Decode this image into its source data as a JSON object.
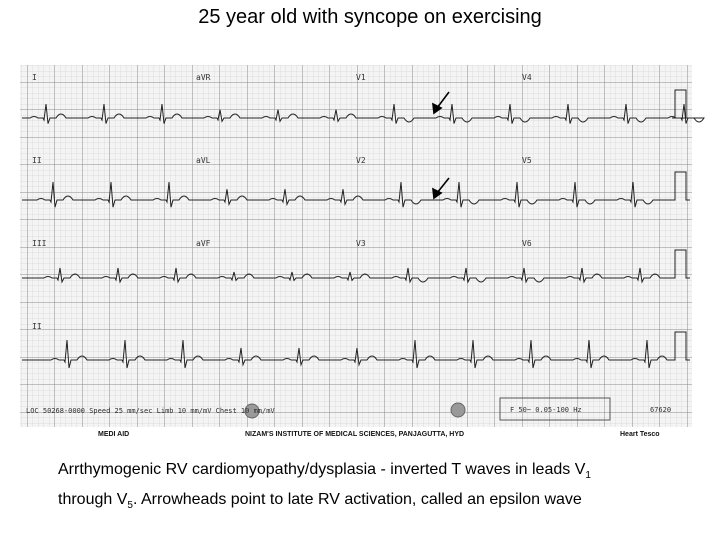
{
  "title": "25 year old with syncope on exercising",
  "ecg": {
    "leads": [
      "I",
      "aVR",
      "V1",
      "V4",
      "II",
      "aVL",
      "V2",
      "V5",
      "III",
      "aVF",
      "V3",
      "V6",
      "II"
    ],
    "footer": {
      "settings": "LOC 50268-0000   Speed 25 mm/sec   Limb 10 mm/mV   Chest 10 mm/mV",
      "filter": "F 50~ 0.05-100 Hz",
      "id": "67620",
      "brand": "MEDI AID",
      "institute": "NIZAM'S INSTITUTE OF MEDICAL SCIENCES, PANJAGUTTA, HYD",
      "maker": "Heart Tesco"
    }
  },
  "caption": {
    "parts": [
      "Arrthymogenic RV cardiomyopathy/dysplasia - inverted T waves in leads V",
      "1",
      "through V",
      "5",
      ". Arrowheads point to late RV activation, called an epsilon wave"
    ]
  }
}
